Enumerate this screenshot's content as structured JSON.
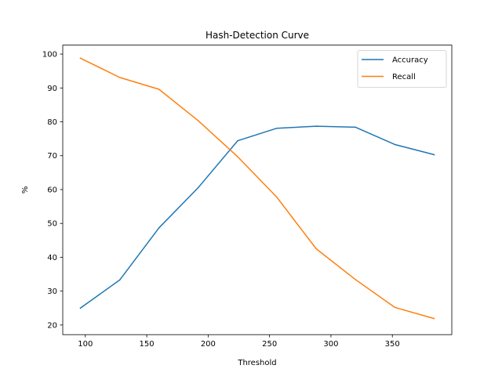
{
  "chart_data": {
    "type": "line",
    "title": "Hash-Detection Curve",
    "xlabel": "Threshold",
    "ylabel": "%",
    "x": [
      96,
      128,
      160,
      192,
      224,
      256,
      288,
      320,
      352,
      384
    ],
    "series": [
      {
        "name": "Accuracy",
        "color": "#1f77b4",
        "values": [
          25.0,
          33.3,
          48.7,
          60.6,
          74.4,
          78.1,
          78.7,
          78.4,
          73.3,
          70.3
        ]
      },
      {
        "name": "Recall",
        "color": "#ff7f0e",
        "values": [
          98.8,
          93.1,
          89.6,
          80.3,
          69.7,
          57.7,
          42.5,
          33.4,
          25.2,
          21.9
        ]
      }
    ],
    "xticks": [
      100,
      150,
      200,
      250,
      300,
      350
    ],
    "yticks": [
      20,
      30,
      40,
      50,
      60,
      70,
      80,
      90,
      100
    ],
    "xlim": [
      81.6,
      398.4
    ],
    "ylim": [
      17.15,
      102.65
    ],
    "grid": false,
    "legend_position": "top-right"
  }
}
